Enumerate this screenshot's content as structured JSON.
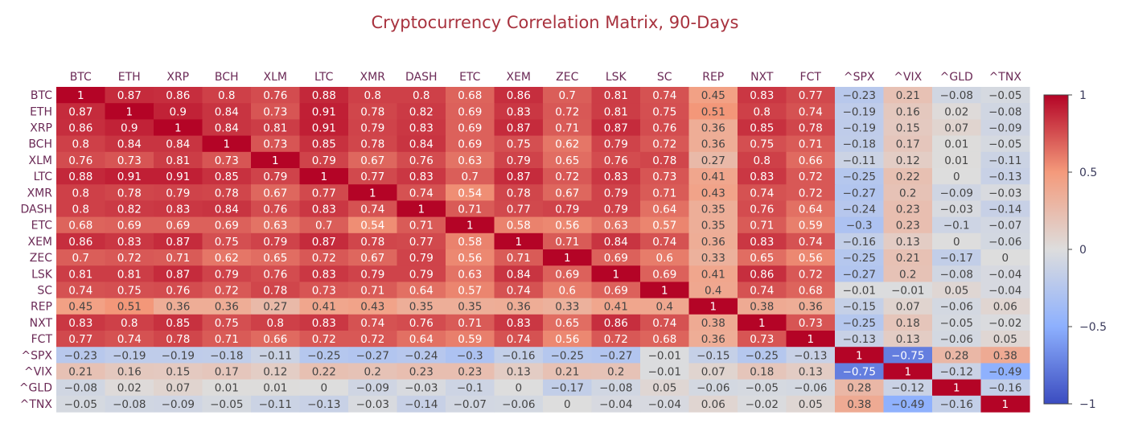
{
  "chart_data": {
    "type": "heatmap",
    "title": "Cryptocurrency Correlation Matrix, 90-Days",
    "x": [
      "BTC",
      "ETH",
      "XRP",
      "BCH",
      "XLM",
      "LTC",
      "XMR",
      "DASH",
      "ETC",
      "XEM",
      "ZEC",
      "LSK",
      "SC",
      "REP",
      "NXT",
      "FCT",
      "^SPX",
      "^VIX",
      "^GLD",
      "^TNX"
    ],
    "y": [
      "BTC",
      "ETH",
      "XRP",
      "BCH",
      "XLM",
      "LTC",
      "XMR",
      "DASH",
      "ETC",
      "XEM",
      "ZEC",
      "LSK",
      "SC",
      "REP",
      "NXT",
      "FCT",
      "^SPX",
      "^VIX",
      "^GLD",
      "^TNX"
    ],
    "z": [
      [
        1,
        0.87,
        0.86,
        0.8,
        0.76,
        0.88,
        0.8,
        0.8,
        0.68,
        0.86,
        0.7,
        0.81,
        0.74,
        0.45,
        0.83,
        0.77,
        -0.23,
        0.21,
        -0.08,
        -0.05
      ],
      [
        0.87,
        1,
        0.9,
        0.84,
        0.73,
        0.91,
        0.78,
        0.82,
        0.69,
        0.83,
        0.72,
        0.81,
        0.75,
        0.51,
        0.8,
        0.74,
        -0.19,
        0.16,
        0.02,
        -0.08
      ],
      [
        0.86,
        0.9,
        1,
        0.84,
        0.81,
        0.91,
        0.79,
        0.83,
        0.69,
        0.87,
        0.71,
        0.87,
        0.76,
        0.36,
        0.85,
        0.78,
        -0.19,
        0.15,
        0.07,
        -0.09
      ],
      [
        0.8,
        0.84,
        0.84,
        1,
        0.73,
        0.85,
        0.78,
        0.84,
        0.69,
        0.75,
        0.62,
        0.79,
        0.72,
        0.36,
        0.75,
        0.71,
        -0.18,
        0.17,
        0.01,
        -0.05
      ],
      [
        0.76,
        0.73,
        0.81,
        0.73,
        1,
        0.79,
        0.67,
        0.76,
        0.63,
        0.79,
        0.65,
        0.76,
        0.78,
        0.27,
        0.8,
        0.66,
        -0.11,
        0.12,
        0.01,
        -0.11
      ],
      [
        0.88,
        0.91,
        0.91,
        0.85,
        0.79,
        1,
        0.77,
        0.83,
        0.7,
        0.87,
        0.72,
        0.83,
        0.73,
        0.41,
        0.83,
        0.72,
        -0.25,
        0.22,
        0,
        -0.13
      ],
      [
        0.8,
        0.78,
        0.79,
        0.78,
        0.67,
        0.77,
        1,
        0.74,
        0.54,
        0.78,
        0.67,
        0.79,
        0.71,
        0.43,
        0.74,
        0.72,
        -0.27,
        0.2,
        -0.09,
        -0.03
      ],
      [
        0.8,
        0.82,
        0.83,
        0.84,
        0.76,
        0.83,
        0.74,
        1,
        0.71,
        0.77,
        0.79,
        0.79,
        0.64,
        0.35,
        0.76,
        0.64,
        -0.24,
        0.23,
        -0.03,
        -0.14
      ],
      [
        0.68,
        0.69,
        0.69,
        0.69,
        0.63,
        0.7,
        0.54,
        0.71,
        1,
        0.58,
        0.56,
        0.63,
        0.57,
        0.35,
        0.71,
        0.59,
        -0.3,
        0.23,
        -0.1,
        -0.07
      ],
      [
        0.86,
        0.83,
        0.87,
        0.75,
        0.79,
        0.87,
        0.78,
        0.77,
        0.58,
        1,
        0.71,
        0.84,
        0.74,
        0.36,
        0.83,
        0.74,
        -0.16,
        0.13,
        0,
        -0.06
      ],
      [
        0.7,
        0.72,
        0.71,
        0.62,
        0.65,
        0.72,
        0.67,
        0.79,
        0.56,
        0.71,
        1,
        0.69,
        0.6,
        0.33,
        0.65,
        0.56,
        -0.25,
        0.21,
        -0.17,
        0
      ],
      [
        0.81,
        0.81,
        0.87,
        0.79,
        0.76,
        0.83,
        0.79,
        0.79,
        0.63,
        0.84,
        0.69,
        1,
        0.69,
        0.41,
        0.86,
        0.72,
        -0.27,
        0.2,
        -0.08,
        -0.04
      ],
      [
        0.74,
        0.75,
        0.76,
        0.72,
        0.78,
        0.73,
        0.71,
        0.64,
        0.57,
        0.74,
        0.6,
        0.69,
        1,
        0.4,
        0.74,
        0.68,
        -0.01,
        -0.01,
        0.05,
        -0.04
      ],
      [
        0.45,
        0.51,
        0.36,
        0.36,
        0.27,
        0.41,
        0.43,
        0.35,
        0.35,
        0.36,
        0.33,
        0.41,
        0.4,
        1,
        0.38,
        0.36,
        -0.15,
        0.07,
        -0.06,
        0.06
      ],
      [
        0.83,
        0.8,
        0.85,
        0.75,
        0.8,
        0.83,
        0.74,
        0.76,
        0.71,
        0.83,
        0.65,
        0.86,
        0.74,
        0.38,
        1,
        0.73,
        -0.25,
        0.18,
        -0.05,
        -0.02
      ],
      [
        0.77,
        0.74,
        0.78,
        0.71,
        0.66,
        0.72,
        0.72,
        0.64,
        0.59,
        0.74,
        0.56,
        0.72,
        0.68,
        0.36,
        0.73,
        1,
        -0.13,
        0.13,
        -0.06,
        0.05
      ],
      [
        -0.23,
        -0.19,
        -0.19,
        -0.18,
        -0.11,
        -0.25,
        -0.27,
        -0.24,
        -0.3,
        -0.16,
        -0.25,
        -0.27,
        -0.01,
        -0.15,
        -0.25,
        -0.13,
        1,
        -0.75,
        0.28,
        0.38
      ],
      [
        0.21,
        0.16,
        0.15,
        0.17,
        0.12,
        0.22,
        0.2,
        0.23,
        0.23,
        0.13,
        0.21,
        0.2,
        -0.01,
        0.07,
        0.18,
        0.13,
        -0.75,
        1,
        -0.12,
        -0.49
      ],
      [
        -0.08,
        0.02,
        0.07,
        0.01,
        0.01,
        0,
        -0.09,
        -0.03,
        -0.1,
        0,
        -0.17,
        -0.08,
        0.05,
        -0.06,
        -0.05,
        -0.06,
        0.28,
        -0.12,
        1,
        -0.16
      ],
      [
        -0.05,
        -0.08,
        -0.09,
        -0.05,
        -0.11,
        -0.13,
        -0.03,
        -0.14,
        -0.07,
        -0.06,
        0,
        -0.04,
        -0.04,
        0.06,
        -0.02,
        0.05,
        0.38,
        -0.49,
        -0.16,
        1
      ]
    ],
    "zrange": [
      -1,
      1
    ],
    "colorscale": [
      [
        0.0,
        "#3b4cc0"
      ],
      [
        0.25,
        "#8db0fe"
      ],
      [
        0.5,
        "#dddddd"
      ],
      [
        0.75,
        "#f49a7b"
      ],
      [
        1.0,
        "#b40426"
      ]
    ],
    "x_axis_side": "top",
    "colorbar": {
      "ticks": [
        1,
        0.5,
        0,
        -0.5,
        -1
      ],
      "tick_labels": [
        "1",
        "0.5",
        "0",
        "−0.5",
        "−1"
      ],
      "placement": "right"
    }
  }
}
